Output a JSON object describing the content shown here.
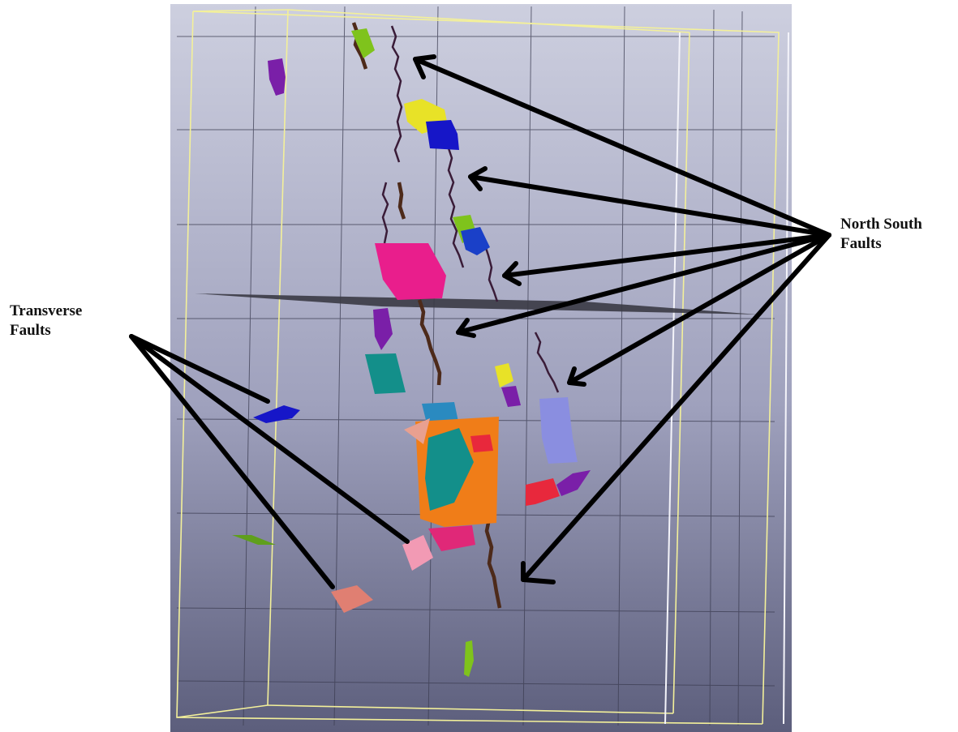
{
  "annotations": {
    "north_south": {
      "line1": "North South",
      "line2": "Faults",
      "color": "#000000"
    },
    "transverse": {
      "line1": "Transverse",
      "line2": "Faults",
      "color": "#000000"
    }
  },
  "viewport": {
    "background_top": "#c9cbdc",
    "background_bottom": "#5f6180",
    "grid_color": "#3b3c4f",
    "bounding_box_color": "#f2ef9a"
  },
  "faults": {
    "north_south_color": "#4a2418",
    "palette": [
      "#e91e8c",
      "#e8e227",
      "#1616c8",
      "#7fc31c",
      "#7a1fa8",
      "#138f8a",
      "#f07d18",
      "#e8283c",
      "#f29ab4",
      "#e07f72",
      "#8a8ee0",
      "#2a8ac0",
      "#6f4a2a"
    ]
  }
}
